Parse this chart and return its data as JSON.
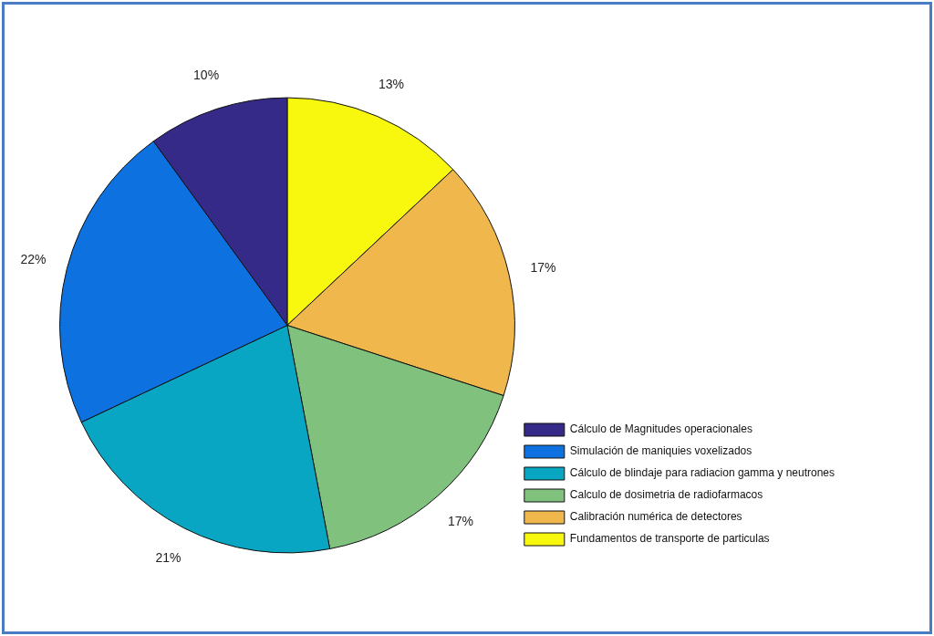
{
  "chart_data": {
    "type": "pie",
    "categories": [
      "Cálculo de Magnitudes operacionales",
      "Simulación de maniquies voxelizados",
      "Cálculo de blindaje para radiacion gamma y neutrones",
      "Calculo de dosimetria de radiofarmacos",
      "Calibración numérica de detectores",
      "Fundamentos de transporte de particulas"
    ],
    "values": [
      10,
      22,
      21,
      17,
      17,
      13
    ],
    "value_labels": [
      "10%",
      "22%",
      "21%",
      "17%",
      "17%",
      "13%"
    ],
    "colors": [
      "#352a87",
      "#0d72e0",
      "#08a6c2",
      "#7fc17d",
      "#f0b84c",
      "#f8f80f"
    ],
    "legend": "right"
  }
}
